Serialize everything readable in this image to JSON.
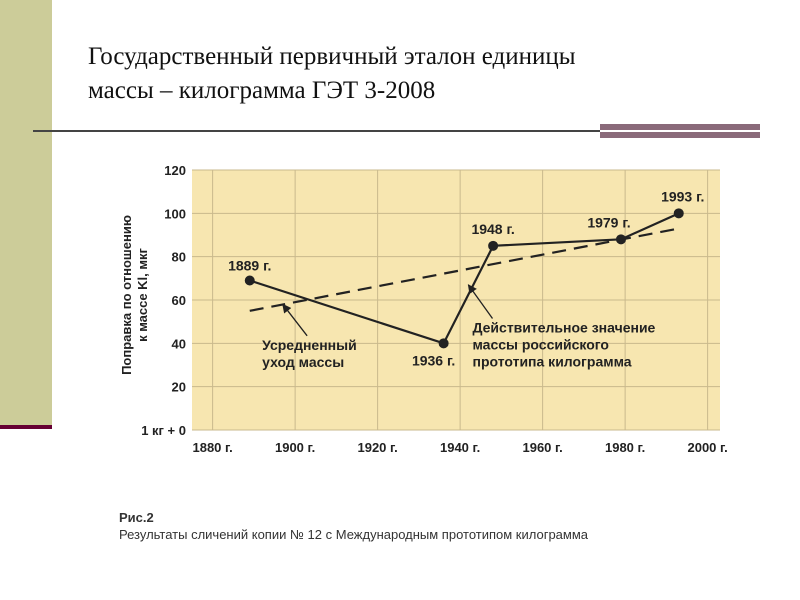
{
  "slide": {
    "title_line1": "Государственный первичный эталон единицы",
    "title_line2": "массы – килограмма ГЭТ 3-2008",
    "colors": {
      "sidebar": "#cccc99",
      "sidebar_line": "#660033",
      "accent_bar": "#8a6a7a"
    }
  },
  "figure": {
    "caption_number": "Рис.2",
    "caption_text": "Результаты сличений копии № 12 с Международным прототипом килограмма"
  },
  "chart_data": {
    "type": "line",
    "ylabel_line1": "Поправка по отношению",
    "ylabel_line2": "к массе Kl, мкг",
    "xlim": [
      1875,
      2003
    ],
    "ylim": [
      0,
      120
    ],
    "x_ticks": [
      1880,
      1900,
      1920,
      1940,
      1960,
      1980,
      2000
    ],
    "x_tick_labels": [
      "1880 г.",
      "1900 г.",
      "1920 г.",
      "1940 г.",
      "1960 г.",
      "1980 г.",
      "2000 г."
    ],
    "y_ticks": [
      0,
      20,
      40,
      60,
      80,
      100,
      120
    ],
    "y_tick_labels": [
      "1 кг + 0",
      "20",
      "40",
      "60",
      "80",
      "100",
      "120"
    ],
    "grid": true,
    "colors": {
      "plot_bg": "#f7e6b0",
      "grid": "#c9b98c",
      "line": "#222222"
    },
    "series": [
      {
        "x": [
          1889,
          1936,
          1948,
          1979,
          1993
        ],
        "y": [
          69,
          40,
          85,
          88,
          100
        ],
        "point_labels": [
          "1889 г.",
          "1936 г.",
          "1948 г.",
          "1979 г.",
          "1993 г."
        ],
        "style": "solid-with-markers"
      },
      {
        "x": [
          1889,
          1993
        ],
        "y": [
          55,
          93
        ],
        "style": "dashed"
      }
    ],
    "annotations": [
      {
        "line1": "Усредненный",
        "line2": "уход массы",
        "text_x": 1892,
        "text_y": 37,
        "arrow_to_x": 1897,
        "arrow_to_y": 58
      },
      {
        "line1": "Действительное значение",
        "line2": "массы российского",
        "line3": "прототипа килограмма",
        "text_x": 1943,
        "text_y": 45,
        "arrow_to_x": 1942,
        "arrow_to_y": 67
      }
    ]
  }
}
